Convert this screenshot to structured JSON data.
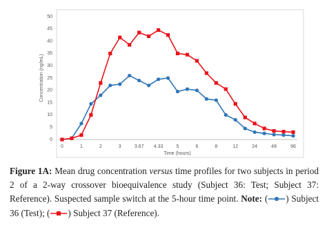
{
  "chart_data": {
    "type": "line",
    "y_label": "Concentration (ng/mL)",
    "x_label": "Time (hours)",
    "categories": [
      "0",
      null,
      "1",
      null,
      "2",
      null,
      "3",
      null,
      "3.67",
      null,
      "4.33",
      null,
      "5",
      null,
      "6",
      null,
      "8",
      null,
      "12",
      null,
      "24",
      null,
      "48",
      null,
      "96"
    ],
    "series": [
      {
        "name": "Subject 36 (Test)",
        "color": "#2e75b6",
        "marker": "circle",
        "values": [
          0,
          0.5,
          6.5,
          14.5,
          18,
          22,
          22.5,
          26,
          24,
          22,
          24.5,
          25,
          19.5,
          20.5,
          20,
          16.5,
          16,
          10,
          8,
          4.5,
          3,
          2.5,
          2,
          1.8,
          1.5
        ]
      },
      {
        "name": "Subject 37 (Reference)",
        "color": "#e8141b",
        "marker": "square",
        "values": [
          0,
          0.5,
          1.8,
          10,
          23,
          35,
          41.5,
          38.5,
          43.5,
          42,
          44.5,
          42.5,
          35,
          34.5,
          32,
          27,
          23,
          20.5,
          14.5,
          9,
          6.5,
          4.5,
          3.5,
          3.2,
          3
        ]
      }
    ],
    "ylim": [
      0,
      50
    ],
    "yticks": [
      0,
      5,
      10,
      15,
      20,
      25,
      30,
      35,
      40,
      45,
      50
    ]
  },
  "caption": {
    "label": "Figure 1A:",
    "text_1": " Mean drug concentration ",
    "emphasis": "versus",
    "text_2": " time profiles for two subjects in period 2 of a 2-way crossover bioequivalence study (Subject 36: Test; Subject 37: Reference). Suspected sample switch at the 5-hour time point. ",
    "note": "Note:",
    "open_1": " (",
    "close_1": ") ",
    "sep": "; (",
    "close_2": ") ",
    "end": "."
  }
}
